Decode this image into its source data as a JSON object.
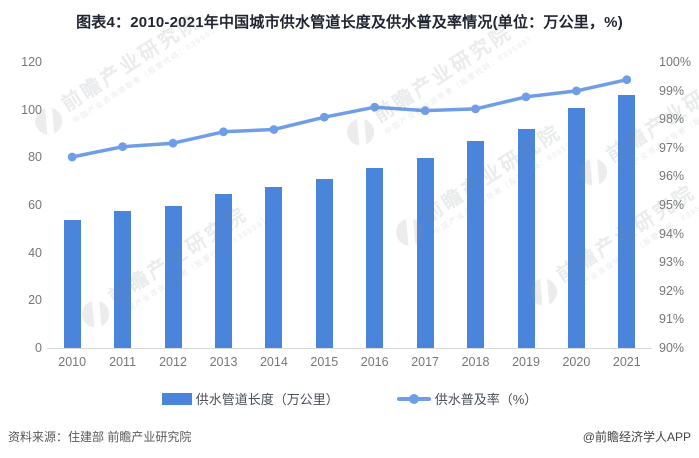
{
  "title": "图表4：2010-2021年中国城市供水管道长度及供水普及率情况(单位：万公里，%)",
  "chart_data": {
    "type": "bar+line",
    "categories": [
      "2010",
      "2011",
      "2012",
      "2013",
      "2014",
      "2015",
      "2016",
      "2017",
      "2018",
      "2019",
      "2020",
      "2021"
    ],
    "series": [
      {
        "name": "供水管道长度（万公里）",
        "type": "bar",
        "axis": "left",
        "color": "#4a85db",
        "values": [
          53.8,
          57.4,
          59.4,
          64.6,
          67.7,
          71.0,
          75.7,
          79.7,
          86.7,
          92.0,
          100.7,
          106.0
        ]
      },
      {
        "name": "供水普及率（%）",
        "type": "line",
        "axis": "right",
        "color": "#6f9ee6",
        "values": [
          96.68,
          97.04,
          97.16,
          97.56,
          97.64,
          98.07,
          98.42,
          98.3,
          98.36,
          98.78,
          98.99,
          99.38
        ]
      }
    ],
    "left_axis": {
      "min": 0,
      "max": 120,
      "step": 20,
      "labels": [
        "0",
        "20",
        "40",
        "60",
        "80",
        "100",
        "120"
      ]
    },
    "right_axis": {
      "min": 90,
      "max": 100,
      "step": 1,
      "labels": [
        "90%",
        "91%",
        "92%",
        "93%",
        "94%",
        "95%",
        "96%",
        "97%",
        "98%",
        "99%",
        "100%"
      ]
    },
    "grid": false,
    "legend_position": "bottom",
    "title": "图表4：2010-2021年中国城市供水管道长度及供水普及率情况(单位：万公里，%)"
  },
  "watermark": {
    "brand": "前瞻产业研究院",
    "tagline": "中国产业咨询领导者（股票代码：839599）"
  },
  "footer": {
    "source": "资料来源：住建部 前瞻产业研究院",
    "credit": "@前瞻经济学人APP"
  }
}
